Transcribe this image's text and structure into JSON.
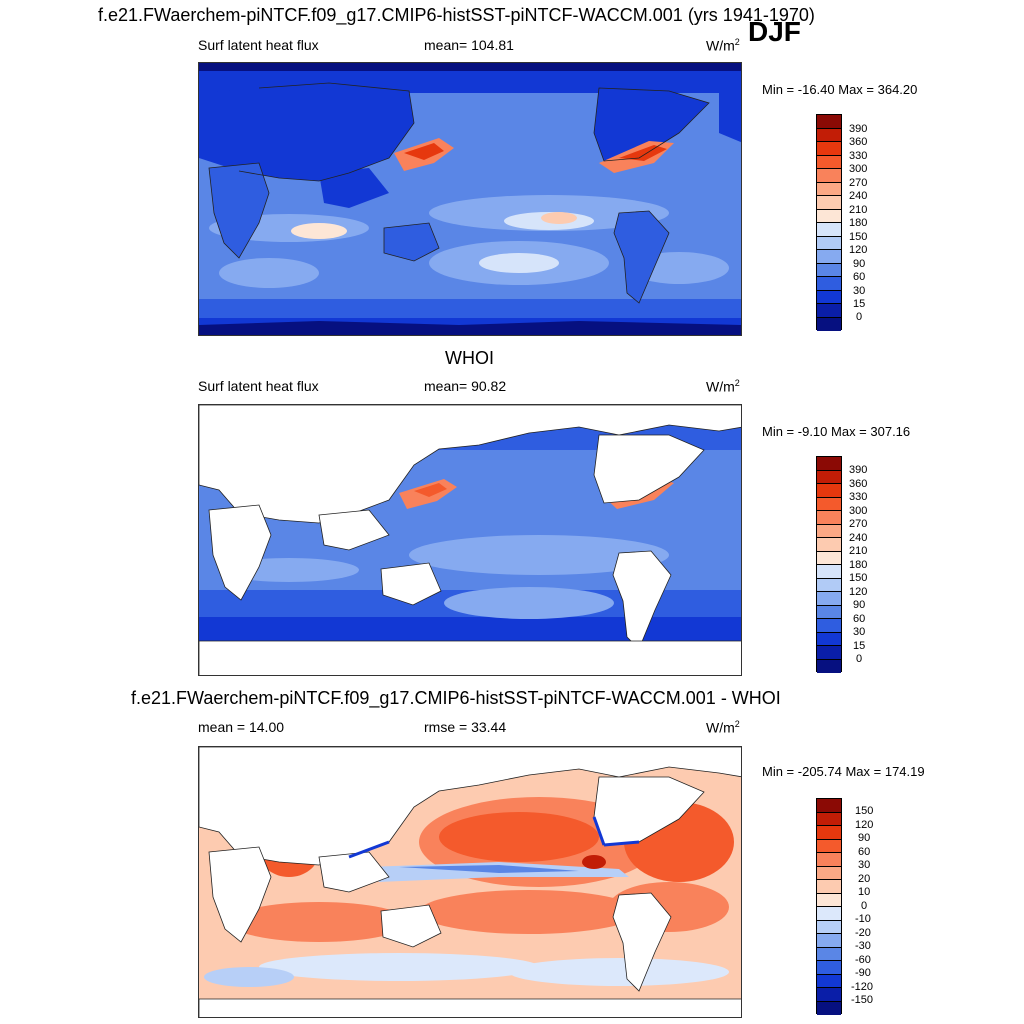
{
  "figure": {
    "season": "DJF",
    "panel1": {
      "title": "f.e21.FWaerchem-piNTCF.f09_g17.CMIP6-histSST-piNTCF-WACCM.001 (yrs 1941-1970)",
      "variable": "Surf latent heat flux",
      "stat": "mean= 104.81",
      "units": "W/m",
      "units_exp": "2",
      "minmax": "Min = -16.40 Max = 364.20"
    },
    "panel2": {
      "title": "WHOI",
      "variable": "Surf latent heat flux",
      "stat": "mean=  90.82",
      "units": "W/m",
      "units_exp": "2",
      "minmax": "Min =  -9.10 Max = 307.16"
    },
    "panel3": {
      "title": "f.e21.FWaerchem-piNTCF.f09_g17.CMIP6-histSST-piNTCF-WACCM.001 - WHOI",
      "stat_left": "mean =  14.00",
      "stat_mid": "rmse =  33.44",
      "units": "W/m",
      "units_exp": "2",
      "minmax": "Min = -205.74 Max = 174.19"
    }
  },
  "chart_data": [
    {
      "type": "heatmap",
      "title": "f.e21.FWaerchem-piNTCF.f09_g17.CMIP6-histSST-piNTCF-WACCM.001 (yrs 1941-1970)",
      "variable": "Surf latent heat flux",
      "units": "W/m^2",
      "mean": 104.81,
      "min": -16.4,
      "max": 364.2,
      "colorbar_levels": [
        "390",
        "360",
        "330",
        "300",
        "270",
        "240",
        "210",
        "180",
        "150",
        "120",
        "90",
        "60",
        "30",
        "15",
        "0"
      ],
      "colorbar_colors": [
        "#8b0a05",
        "#c21d06",
        "#e6380e",
        "#f45a2c",
        "#f9825b",
        "#fba885",
        "#fdcbb0",
        "#fde6d6",
        "#d6e4fa",
        "#b1cbf6",
        "#86aaf0",
        "#5a86e6",
        "#2f5de0",
        "#1238d4",
        "#0a1ea8",
        "#061080"
      ]
    },
    {
      "type": "heatmap",
      "title": "WHOI",
      "variable": "Surf latent heat flux",
      "units": "W/m^2",
      "mean": 90.82,
      "min": -9.1,
      "max": 307.16,
      "colorbar_levels": [
        "390",
        "360",
        "330",
        "300",
        "270",
        "240",
        "210",
        "180",
        "150",
        "120",
        "90",
        "60",
        "30",
        "15",
        "0"
      ],
      "colorbar_colors": [
        "#8b0a05",
        "#c21d06",
        "#e6380e",
        "#f45a2c",
        "#f9825b",
        "#fba885",
        "#fdcbb0",
        "#fde6d6",
        "#d6e4fa",
        "#b1cbf6",
        "#86aaf0",
        "#5a86e6",
        "#2f5de0",
        "#1238d4",
        "#0a1ea8",
        "#061080"
      ]
    },
    {
      "type": "heatmap",
      "title": "f.e21.FWaerchem-piNTCF.f09_g17.CMIP6-histSST-piNTCF-WACCM.001 - WHOI",
      "units": "W/m^2",
      "mean": 14.0,
      "rmse": 33.44,
      "min": -205.74,
      "max": 174.19,
      "colorbar_levels": [
        "150",
        "120",
        "90",
        "60",
        "30",
        "20",
        "10",
        "0",
        "-10",
        "-20",
        "-30",
        "-60",
        "-90",
        "-120",
        "-150"
      ],
      "colorbar_colors": [
        "#8b0a05",
        "#c21d06",
        "#e6380e",
        "#f45a2c",
        "#f9825b",
        "#fba885",
        "#fdcbb0",
        "#fde6d6",
        "#dce8fb",
        "#b7cff7",
        "#86aaf0",
        "#5a86e6",
        "#2f5de0",
        "#1238d4",
        "#0a1ea8",
        "#061080"
      ]
    }
  ]
}
